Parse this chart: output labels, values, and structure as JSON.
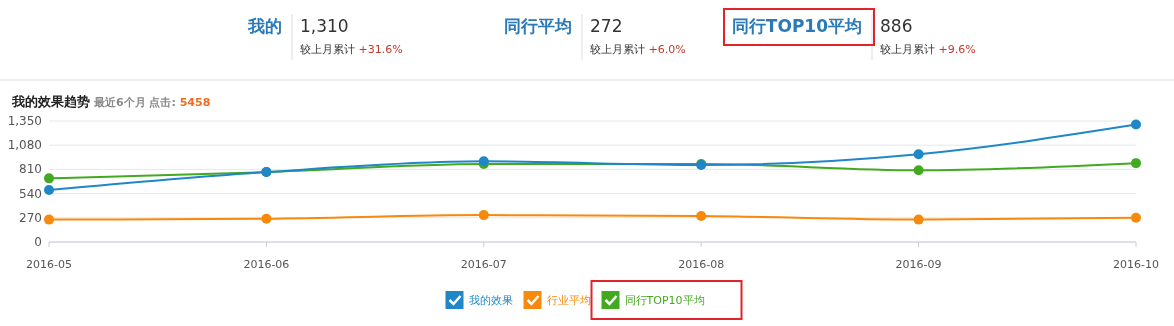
{
  "chart_data": {
    "type": "line",
    "title": "我的效果趋势",
    "subtitle": "最近6个月 点击: 5458",
    "categories": [
      "2016-05",
      "2016-06",
      "2016-07",
      "2016-08",
      "2016-09",
      "2016-10"
    ],
    "series": [
      {
        "name": "我的效果",
        "color": "#1f86c8",
        "values": [
          580,
          780,
          900,
          860,
          980,
          1310
        ]
      },
      {
        "name": "行业平均",
        "color": "#f7890c",
        "values": [
          250,
          260,
          300,
          290,
          250,
          270
        ]
      },
      {
        "name": "同行TOP10平均",
        "color": "#43a920",
        "values": [
          710,
          780,
          870,
          870,
          800,
          880
        ]
      }
    ],
    "ylim": [
      0,
      1350
    ],
    "yticks": [
      0,
      {
        "value": 270,
        "label": "270"
      },
      {
        "value": 540,
        "label": "540"
      },
      {
        "value": 810,
        "label": "810"
      },
      {
        "value": 1080,
        "label": "1,080"
      },
      {
        "value": 1350,
        "label": "1,350"
      }
    ],
    "grid": "y",
    "legend": "bottom",
    "marker": "circle",
    "line_style": "solid",
    "annotations": [
      "我的",
      "1,310",
      "较上月累计 +31.6%",
      "同行平均",
      "272",
      "较上月累计 +6.0%",
      "同行TOP10平均",
      "886",
      "较上月累计 +9.6%"
    ]
  }
}
